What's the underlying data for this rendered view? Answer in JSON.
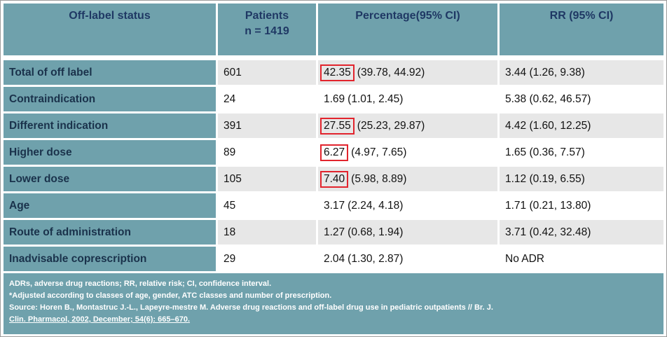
{
  "colors": {
    "teal": "#6FA1AC",
    "headerText": "#1F3864",
    "labelText": "#1A324B",
    "rowAlt": "#E7E7E7",
    "hl": "#E2242D"
  },
  "chart_data": {
    "type": "table",
    "columns": [
      "Off-label status",
      "Patients\nn = 1419",
      "Percentage(95% CI)",
      "RR (95% CI)"
    ],
    "rows": [
      {
        "label": "Total of off label",
        "patients": "601",
        "pct_value": "42.35",
        "pct_ci": "(39.78, 44.92)",
        "rr": "3.44 (1.26, 9.38)",
        "highlighted": true
      },
      {
        "label": "Contraindication",
        "patients": "24",
        "pct_value": "1.69",
        "pct_ci": "(1.01, 2.45)",
        "rr": "5.38 (0.62, 46.57)",
        "highlighted": false
      },
      {
        "label": "Different indication",
        "patients": "391",
        "pct_value": "27.55",
        "pct_ci": "(25.23, 29.87)",
        "rr": "4.42 (1.60, 12.25)",
        "highlighted": true
      },
      {
        "label": "Higher dose",
        "patients": "89",
        "pct_value": "6.27",
        "pct_ci": "(4.97, 7.65)",
        "rr": "1.65 (0.36, 7.57)",
        "highlighted": true
      },
      {
        "label": "Lower dose",
        "patients": "105",
        "pct_value": "7.40",
        "pct_ci": "(5.98, 8.89)",
        "rr": "1.12 (0.19, 6.55)",
        "highlighted": true
      },
      {
        "label": "Age",
        "patients": "45",
        "pct_value": "3.17",
        "pct_ci": "(2.24, 4.18)",
        "rr": "1.71 (0.21, 13.80)",
        "highlighted": false
      },
      {
        "label": "Route of administration",
        "patients": "18",
        "pct_value": "1.27",
        "pct_ci": "(0.68, 1.94)",
        "rr": "3.71 (0.42, 32.48)",
        "highlighted": false
      },
      {
        "label": "Inadvisable coprescription",
        "patients": "29",
        "pct_value": "2.04",
        "pct_ci": "(1.30, 2.87)",
        "rr": "No ADR",
        "highlighted": false
      }
    ],
    "footnotes": [
      "ADRs, adverse drug reactions; RR, relative risk; CI, confidence interval.",
      "*Adjusted according to classes of age, gender, ATC classes and number of prescription.",
      "Source: Horen B., Montastruc J.-L., Lapeyre-mestre M. Adverse drug reactions and off-label drug use in pediatric outpatients // Br. J.",
      "Clin. Pharmacol, 2002, December; 54(6): 665–670."
    ]
  }
}
